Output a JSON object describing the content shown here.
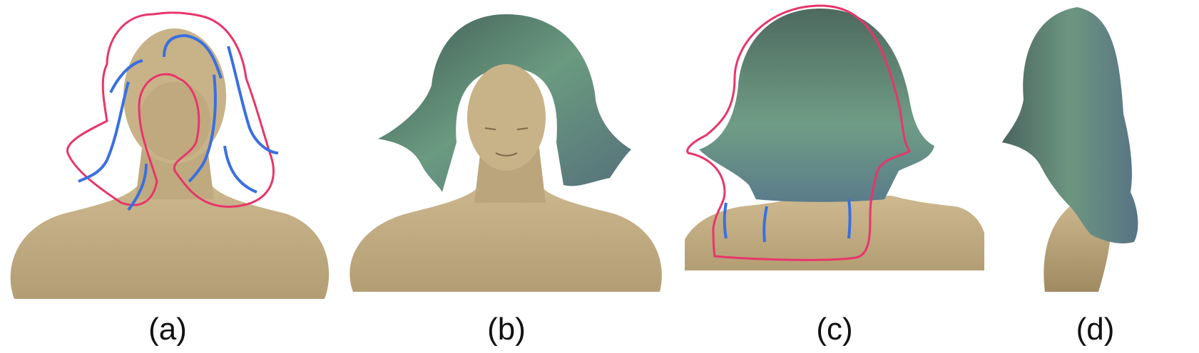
{
  "colors": {
    "skin": "#c9b48a",
    "skin_shadow": "#a8946c",
    "sketch_outline": "#e8356a",
    "sketch_strokes": "#3a6fe0",
    "hair_base": "#5a7a6a"
  },
  "panels": [
    {
      "caption": "(a)"
    },
    {
      "caption": "(b)"
    },
    {
      "caption": "(c)"
    },
    {
      "caption": "(d)"
    }
  ]
}
